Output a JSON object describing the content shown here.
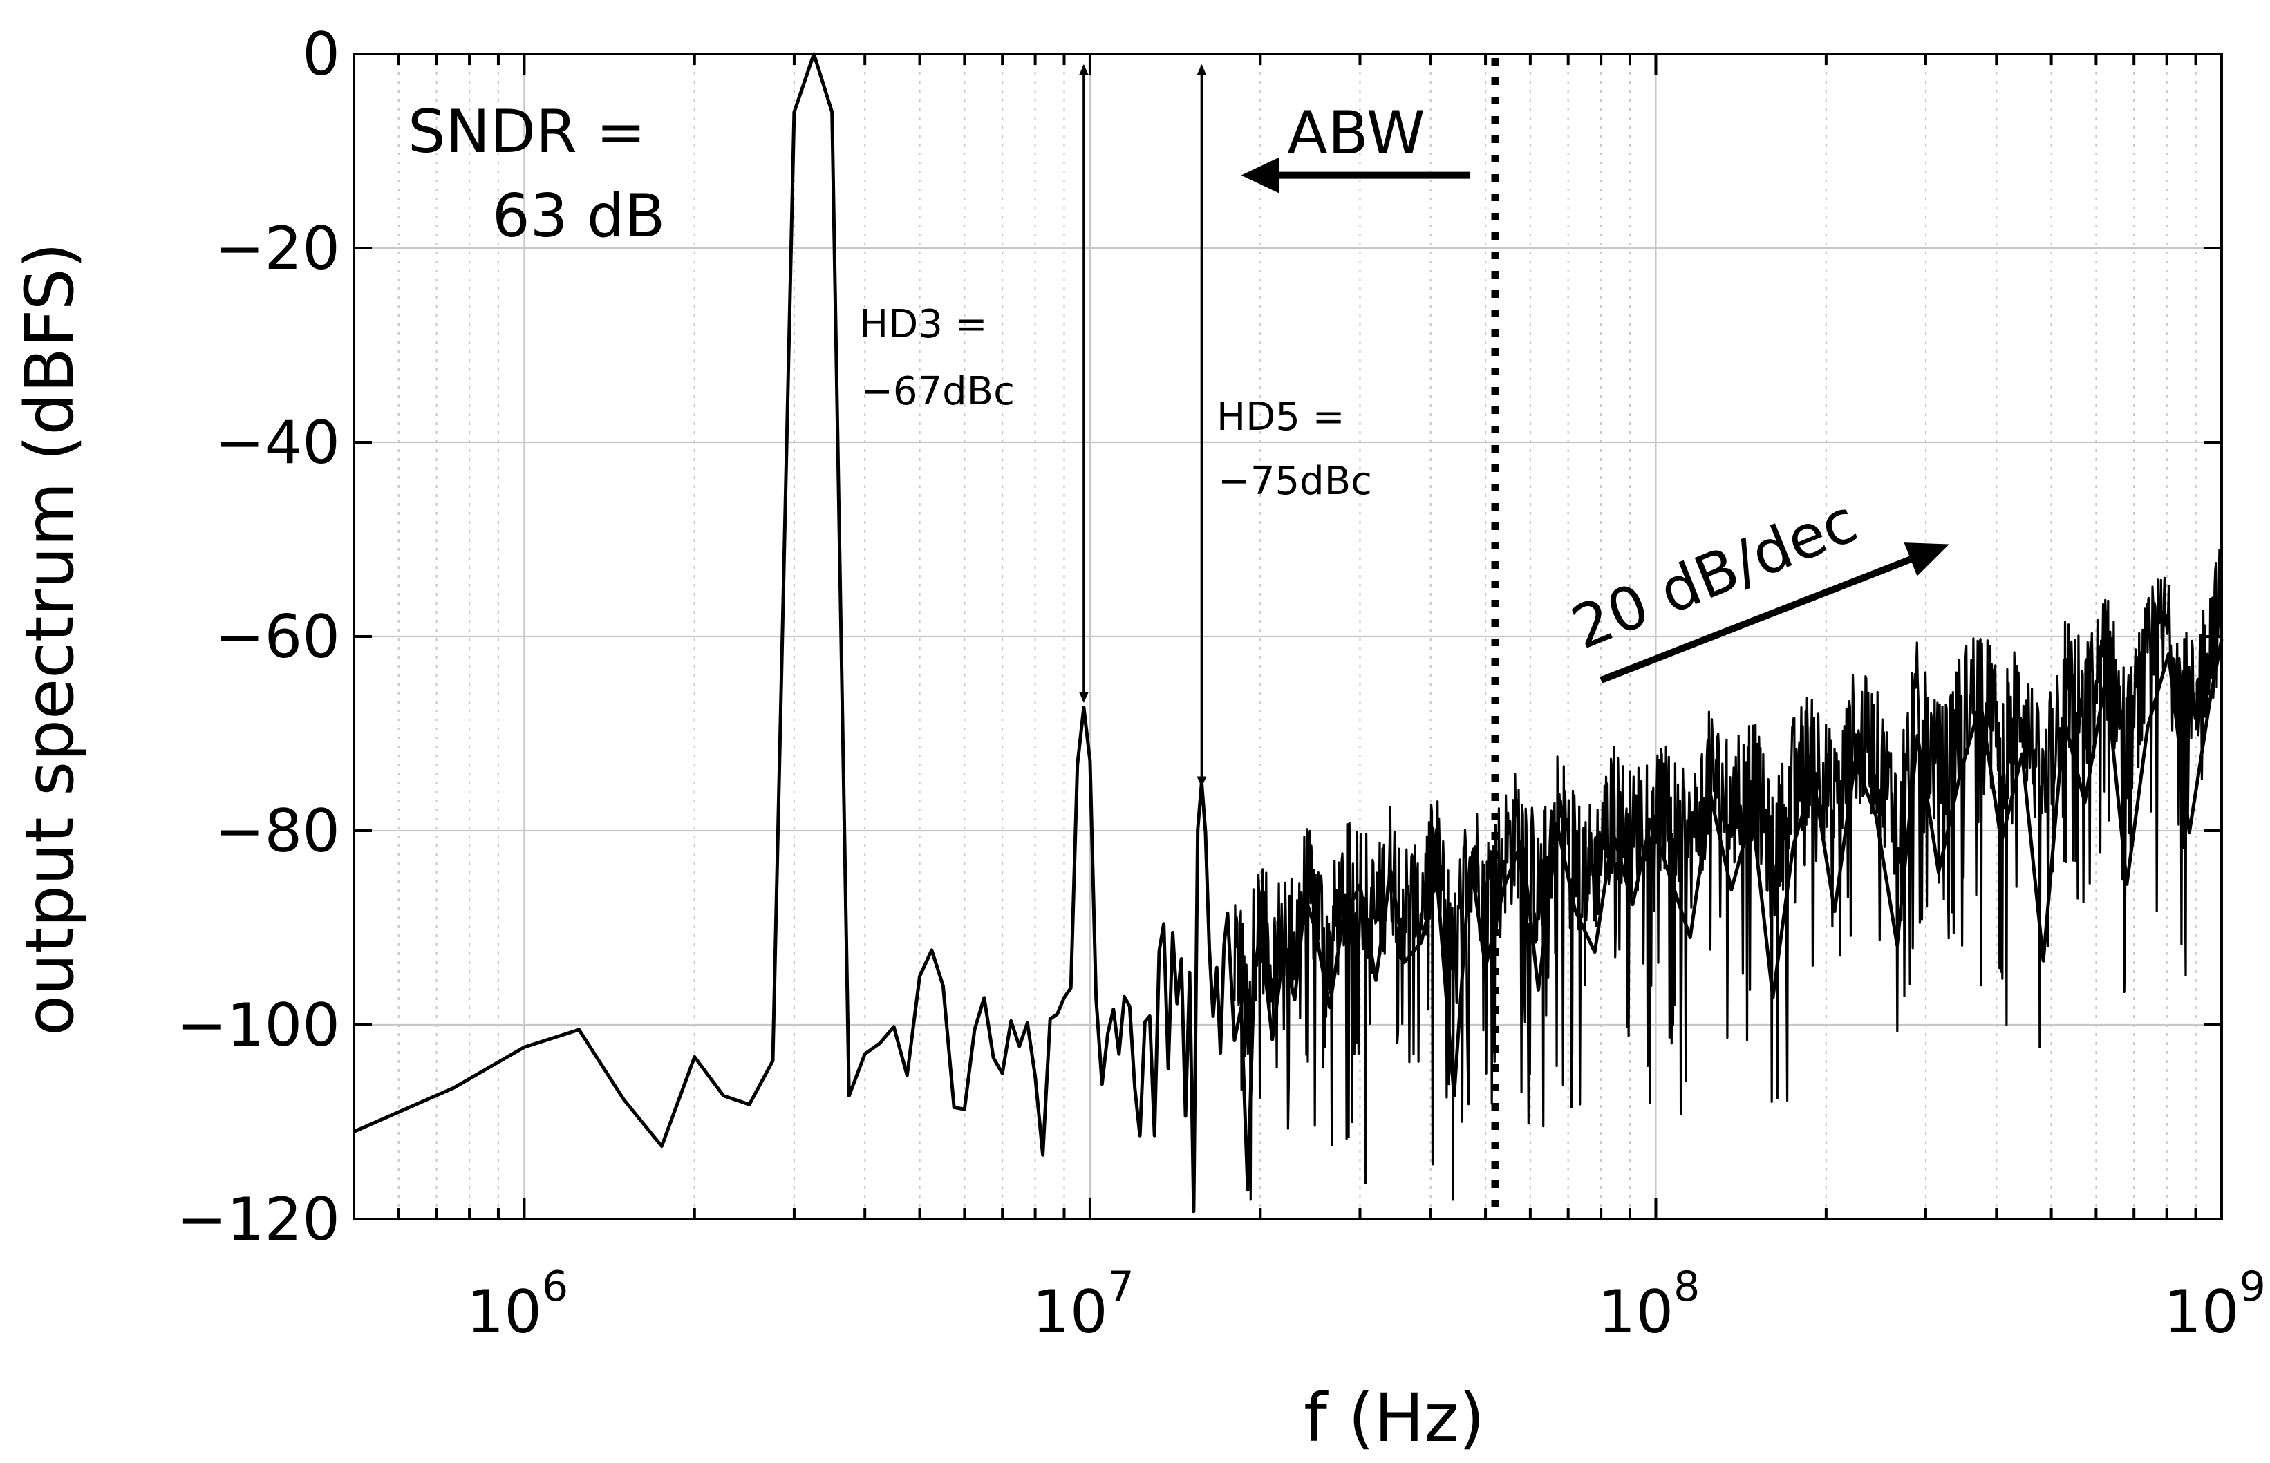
{
  "chart_data": {
    "type": "line",
    "title": "",
    "xlabel": "f (Hz)",
    "ylabel": "output spectrum (dBFS)",
    "xscale": "log",
    "xlim": [
      500000,
      1000000000
    ],
    "ylim": [
      -120,
      0
    ],
    "grid": true,
    "yticks": [
      0,
      -20,
      -40,
      -60,
      -80,
      -100,
      -120
    ],
    "ytick_labels": [
      "0",
      "−20",
      "−40",
      "−60",
      "−80",
      "−100",
      "−120"
    ],
    "xticks": [
      {
        "value": 1000000,
        "base": "10",
        "exp": "6"
      },
      {
        "value": 10000000,
        "base": "10",
        "exp": "7"
      },
      {
        "value": 100000000,
        "base": "10",
        "exp": "8"
      },
      {
        "value": 1000000000,
        "base": "10",
        "exp": "9"
      }
    ],
    "series": [
      {
        "name": "output spectrum",
        "color": "#000000",
        "x": [
          500000,
          750000,
          1000000,
          1250000,
          1500000,
          1750000,
          2000000,
          2250000,
          2500000,
          2750000,
          3000000,
          3250000,
          3500000,
          3750000,
          4000000,
          4250000,
          4500000,
          4750000,
          5000000,
          5250000,
          5500000,
          5750000,
          6000000,
          6250000,
          6500000,
          6750000,
          7000000,
          7250000,
          7500000,
          7750000,
          8000000,
          8250000,
          8500000,
          8750000,
          9000000,
          9250000,
          9500000,
          9750000,
          10000000,
          10250000,
          10500000,
          10750000,
          11000000,
          11250000,
          11500000,
          11750000,
          12000000,
          12250000,
          12500000,
          12750000,
          13000000,
          13250000,
          13500000,
          13750000,
          14000000,
          14250000,
          14500000,
          14750000,
          15000000,
          15250000,
          15500000,
          15750000,
          16000000,
          16250000,
          16500000,
          16750000,
          17000000,
          17250000,
          17500000,
          18000000,
          18500000,
          19000000,
          19500000,
          20000000,
          21000000,
          22000000,
          23000000,
          24000000,
          25000000,
          26500000,
          28000000,
          30000000,
          32000000,
          34000000,
          36000000,
          38500000,
          41000000,
          44000000,
          47000000,
          50000000,
          54000000,
          58000000,
          62000000,
          67000000,
          72000000,
          78000000,
          84000000,
          91000000,
          98000000,
          106000000,
          115000000,
          125000000,
          136000000,
          148000000,
          161000000,
          175000000,
          190000000,
          207000000,
          225000000,
          245000000,
          267000000,
          290000000,
          316000000,
          344000000,
          375000000,
          408000000,
          444000000,
          484000000,
          527000000,
          573000000,
          624000000,
          680000000,
          740000000,
          806000000,
          877000000,
          955000000,
          1000000000
        ],
        "y": [
          -111,
          -106.5,
          -102.3,
          -100.5,
          -107.7,
          -112.5,
          -103.3,
          -107.3,
          -108.2,
          -103.7,
          -6,
          0,
          -6,
          -107.3,
          -103,
          -101.9,
          -100.2,
          -105.2,
          -95,
          -92.3,
          -96,
          -108.5,
          -108.7,
          -100.5,
          -97.2,
          -103.4,
          -105,
          -99.6,
          -102.2,
          -99.8,
          -105.3,
          -113.4,
          -99.4,
          -98.9,
          -97.2,
          -96.2,
          -73.2,
          -67.3,
          -72.8,
          -97.3,
          -106.1,
          -100.9,
          -98.4,
          -103,
          -97.1,
          -98.1,
          -106.5,
          -111.4,
          -99.7,
          -99.1,
          -111.4,
          -92.4,
          -89.6,
          -104.5,
          -90.5,
          -97.8,
          -93.2,
          -109.4,
          -94.6,
          -119.2,
          -79.9,
          -75,
          -80.2,
          -92.1,
          -99.1,
          -94.1,
          -102.9,
          -91.8,
          -88.5,
          -101.6,
          -98.2,
          -117,
          -95,
          -90.1,
          -101.5,
          -92.2,
          -97.4,
          -86.9,
          -90.1,
          -98.2,
          -89.3,
          -85.6,
          -95.4,
          -84.2,
          -93.5,
          -91.5,
          -84.7,
          -107.3,
          -82.8,
          -94.1,
          -85.7,
          -81.1,
          -96.4,
          -79.5,
          -88.2,
          -92.5,
          -80.2,
          -87.6,
          -78.9,
          -84.8,
          -91,
          -76.4,
          -86.1,
          -78.2,
          -97.2,
          -81.5,
          -74.6,
          -88.3,
          -72.9,
          -78.5,
          -91.8,
          -70.2,
          -84.3,
          -74.5,
          -66.8,
          -81.2,
          -72.1,
          -93.4,
          -68.5,
          -77.1,
          -64.2,
          -85.5,
          -69.3,
          -61.8,
          -80.2,
          -66.4,
          -60.3
        ]
      }
    ],
    "annotations": {
      "sndr_line1": "SNDR =",
      "sndr_line2": "63 dB",
      "hd3_line1": "HD3 =",
      "hd3_line2": "−67dBc",
      "hd5_line1": "HD5 =",
      "hd5_line2": "−75dBc",
      "abw": "ABW",
      "slope": "20 dB/dec"
    },
    "markers": {
      "hd3_freq": 9750000,
      "hd3_level": -67.3,
      "hd5_freq": 15750000,
      "hd5_level": -75,
      "abw_freq": 52000000,
      "abw_arrow_tail_freq": 47000000,
      "abw_arrow_head_freq": 18500000,
      "abw_arrow_level": -12.5,
      "slope_start_freq": 80000000,
      "slope_start_level": -64.5,
      "slope_end_freq": 330000000,
      "slope_end_level": -50.5
    }
  }
}
